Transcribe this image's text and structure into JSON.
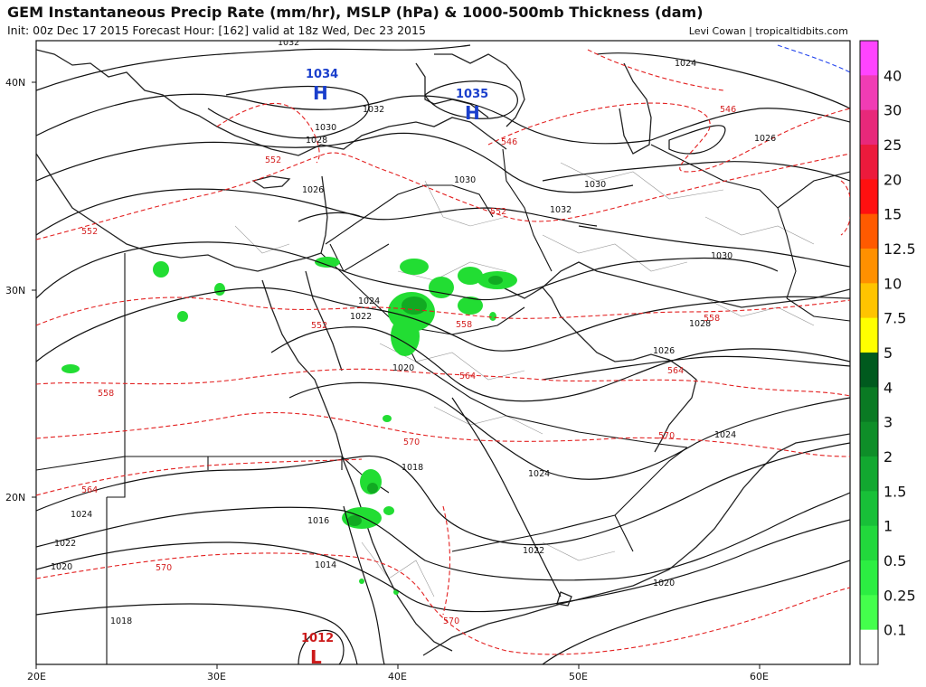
{
  "header": {
    "title": "GEM Instantaneous Precip Rate (mm/hr), MSLP (hPa) & 1000-500mb Thickness (dam)",
    "subtitle": "Init: 00z Dec 17 2015   Forecast Hour: [162]   valid at 18z Wed, Dec 23 2015",
    "credit": "Levi Cowan | tropicaltidbits.com"
  },
  "axes": {
    "lon_ticks": [
      "20E",
      "30E",
      "40E",
      "50E",
      "60E"
    ],
    "lat_ticks": [
      "40N",
      "30N",
      "20N"
    ]
  },
  "pressure_centers": [
    {
      "type": "H",
      "value": "1034"
    },
    {
      "type": "H",
      "value": "1035"
    },
    {
      "type": "L",
      "value": "1012"
    }
  ],
  "isobar_labels": [
    "1032",
    "1024",
    "1032",
    "1030",
    "1028",
    "1026",
    "1026",
    "1030",
    "1032",
    "1030",
    "1028",
    "1026",
    "1024",
    "1022",
    "1020",
    "1018",
    "1016",
    "1014",
    "1024",
    "1024",
    "1022",
    "1020",
    "1018",
    "1024",
    "1022",
    "1020",
    "1030"
  ],
  "thickness_labels": [
    "546",
    "546",
    "552",
    "552",
    "552",
    "552",
    "558",
    "558",
    "558",
    "564",
    "564",
    "564",
    "570",
    "570",
    "570",
    "570"
  ],
  "colorbar": {
    "labels": [
      "40",
      "30",
      "25",
      "20",
      "15",
      "12.5",
      "10",
      "7.5",
      "5",
      "4",
      "3",
      "2",
      "1.5",
      "1",
      "0.5",
      "0.25",
      "0.1"
    ],
    "colors": [
      "#ff44ff",
      "#f03cb4",
      "#e8287a",
      "#ec1a3c",
      "#ff1010",
      "#ff5a00",
      "#ff9000",
      "#ffc400",
      "#ffff00",
      "#005a1e",
      "#0a7a23",
      "#0e8e28",
      "#12a830",
      "#18c038",
      "#22d83c",
      "#2cee42",
      "#44ff4c",
      "#ffffff"
    ]
  },
  "precip_colors": {
    "light": "#22dd33",
    "medium": "#11aa22",
    "heavy": "#0a6a18"
  }
}
